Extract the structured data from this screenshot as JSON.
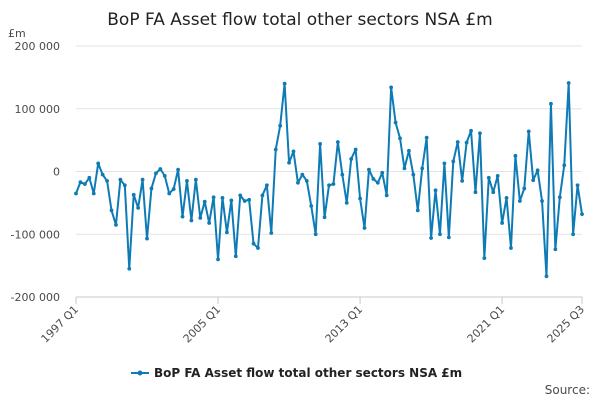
{
  "chart_data": {
    "type": "line",
    "title": "BoP FA Asset flow total other sectors NSA £m",
    "unit_label": "£m",
    "source_label": "Source:",
    "legend": "BoP FA Asset flow total other sectors NSA £m",
    "series_color": "#0f7bb5",
    "ylim": [
      -200000,
      200000
    ],
    "y_ticks": [
      200000,
      100000,
      0,
      -100000,
      -200000
    ],
    "y_tick_labels": [
      "200 000",
      "100 000",
      "0",
      "-100 000",
      "-200 000"
    ],
    "x_ticks": [
      0,
      32,
      64,
      96,
      114
    ],
    "x_tick_labels": [
      "1997 Q1",
      "2005 Q1",
      "2013 Q1",
      "2021 Q1",
      "2025 Q3"
    ],
    "start": "1997 Q1",
    "end": "2025 Q3",
    "series": [
      {
        "name": "BoP FA Asset flow total other sectors NSA £m",
        "values": [
          -35000,
          -17000,
          -20000,
          -10000,
          -35000,
          13000,
          -5000,
          -15000,
          -62000,
          -85000,
          -13000,
          -22000,
          -155000,
          -37000,
          -58000,
          -13000,
          -107000,
          -27000,
          -3000,
          4000,
          -7000,
          -35000,
          -28000,
          3000,
          -72000,
          -15000,
          -78000,
          -13000,
          -74000,
          -48000,
          -82000,
          -41000,
          -140000,
          -42000,
          -97000,
          -46000,
          -135000,
          -38000,
          -47000,
          -45000,
          -115000,
          -122000,
          -38000,
          -22000,
          -98000,
          35000,
          73000,
          140000,
          14000,
          32000,
          -18000,
          -5000,
          -15000,
          -55000,
          -100000,
          44000,
          -73000,
          -22000,
          -20000,
          47000,
          -5000,
          -50000,
          20000,
          35000,
          -43000,
          -90000,
          3000,
          -12000,
          -18000,
          -2000,
          -38000,
          134000,
          78000,
          53000,
          5000,
          33000,
          -5000,
          -62000,
          5000,
          54000,
          -106000,
          -30000,
          -100000,
          13000,
          -105000,
          16000,
          47000,
          -15000,
          46000,
          65000,
          -33000,
          61000,
          -138000,
          -10000,
          -33000,
          -7000,
          -82000,
          -42000,
          -122000,
          25000,
          -47000,
          -27000,
          64000,
          -14000,
          2000,
          -47000,
          -167000,
          108000,
          -124000,
          -41000,
          10000,
          141000,
          -100000,
          -22000,
          -68000
        ]
      }
    ]
  }
}
